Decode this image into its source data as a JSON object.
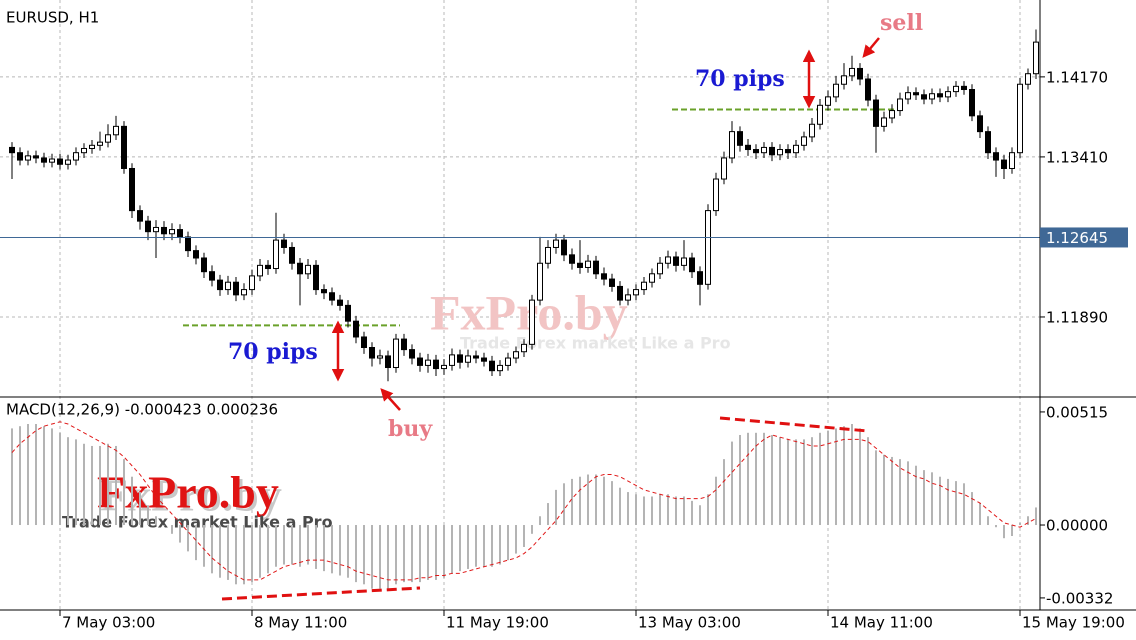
{
  "chart_data": [
    {
      "type": "candlestick",
      "title": "EURUSD, H1",
      "categories": [
        null,
        null,
        null,
        null,
        null,
        null,
        "7 May 03:00",
        null,
        null,
        null,
        null,
        null,
        null,
        null,
        null,
        null,
        null,
        null,
        null,
        null,
        null,
        null,
        null,
        null,
        null,
        null,
        null,
        null,
        null,
        null,
        "8 May 11:00",
        null,
        null,
        null,
        null,
        null,
        null,
        null,
        null,
        null,
        null,
        null,
        null,
        null,
        null,
        null,
        null,
        null,
        null,
        null,
        null,
        null,
        null,
        null,
        "11 May 19:00",
        null,
        null,
        null,
        null,
        null,
        null,
        null,
        null,
        null,
        null,
        null,
        null,
        null,
        null,
        null,
        null,
        null,
        null,
        null,
        null,
        null,
        null,
        null,
        "13 May 03:00",
        null,
        null,
        null,
        null,
        null,
        null,
        null,
        null,
        null,
        null,
        null,
        null,
        null,
        null,
        null,
        null,
        null,
        null,
        null,
        null,
        null,
        null,
        null,
        "14 May 11:00",
        null,
        null,
        null,
        null,
        null,
        null,
        null,
        null,
        null,
        null,
        null,
        null,
        null,
        null,
        null,
        null,
        null,
        null,
        null,
        null,
        null,
        null,
        null,
        "15 May 19:00",
        null,
        null
      ],
      "open": [
        1.135,
        1.1345,
        1.1338,
        1.1342,
        1.134,
        1.1336,
        1.1339,
        1.1334,
        1.1338,
        1.1345,
        1.1349,
        1.1352,
        1.1355,
        1.1362,
        1.137,
        1.133,
        1.129,
        1.128,
        1.127,
        1.1274,
        1.1268,
        1.1272,
        1.1265,
        1.1252,
        1.1245,
        1.1232,
        1.1224,
        1.1215,
        1.1222,
        1.121,
        1.1215,
        1.1228,
        1.1238,
        1.1235,
        1.1262,
        1.1255,
        1.124,
        1.123,
        1.1238,
        1.1215,
        1.1212,
        1.1205,
        1.12,
        1.1185,
        1.117,
        1.116,
        1.115,
        1.1152,
        1.1141,
        1.1168,
        1.1158,
        1.115,
        1.1143,
        1.1148,
        1.114,
        1.1143,
        1.1153,
        1.1146,
        1.1152,
        1.115,
        1.1147,
        1.1138,
        1.1143,
        1.115,
        1.1156,
        1.1163,
        1.1205,
        1.124,
        1.1255,
        1.1262,
        1.1248,
        1.124,
        1.1236,
        1.1242,
        1.123,
        1.1225,
        1.1218,
        1.1205,
        1.121,
        1.1215,
        1.1222,
        1.123,
        1.124,
        1.1246,
        1.1238,
        1.1245,
        1.1232,
        1.122,
        1.129,
        1.132,
        1.134,
        1.1365,
        1.1352,
        1.1348,
        1.1345,
        1.135,
        1.1343,
        1.1348,
        1.1345,
        1.1352,
        1.136,
        1.1372,
        1.139,
        1.1398,
        1.141,
        1.1418,
        1.1425,
        1.1415,
        1.1395,
        1.137,
        1.1378,
        1.1385,
        1.1396,
        1.1402,
        1.14,
        1.1396,
        1.1401,
        1.1398,
        1.1403,
        1.1408,
        1.1405,
        1.138,
        1.1365,
        1.1345,
        1.1338,
        1.133,
        1.1345,
        1.141,
        1.142
      ],
      "high": [
        1.1355,
        1.135,
        1.1347,
        1.1347,
        1.1345,
        1.1344,
        1.1344,
        1.1343,
        1.135,
        1.1354,
        1.1357,
        1.1365,
        1.1372,
        1.138,
        1.1375,
        1.1335,
        1.1295,
        1.1285,
        1.1281,
        1.128,
        1.1278,
        1.1277,
        1.127,
        1.1257,
        1.125,
        1.1238,
        1.1229,
        1.1228,
        1.1227,
        1.1221,
        1.1234,
        1.1244,
        1.1243,
        1.1288,
        1.1268,
        1.126,
        1.1245,
        1.1244,
        1.1243,
        1.122,
        1.1217,
        1.121,
        1.1205,
        1.119,
        1.1175,
        1.1165,
        1.1158,
        1.1157,
        1.1173,
        1.1173,
        1.1163,
        1.1155,
        1.1154,
        1.1153,
        1.1149,
        1.1159,
        1.1158,
        1.1158,
        1.1157,
        1.1155,
        1.1152,
        1.1148,
        1.1155,
        1.1161,
        1.1168,
        1.121,
        1.1265,
        1.1262,
        1.1268,
        1.1267,
        1.1254,
        1.1262,
        1.1248,
        1.1247,
        1.1236,
        1.123,
        1.1223,
        1.1216,
        1.122,
        1.1227,
        1.1235,
        1.1246,
        1.1252,
        1.1251,
        1.1262,
        1.125,
        1.1237,
        1.1296,
        1.1326,
        1.1346,
        1.1375,
        1.137,
        1.1358,
        1.1353,
        1.1355,
        1.1355,
        1.1353,
        1.1353,
        1.1357,
        1.1365,
        1.1378,
        1.1396,
        1.1404,
        1.1418,
        1.143,
        1.1437,
        1.143,
        1.142,
        1.14,
        1.1384,
        1.1391,
        1.1402,
        1.1408,
        1.1407,
        1.1405,
        1.1406,
        1.1406,
        1.1408,
        1.1413,
        1.1413,
        1.141,
        1.1385,
        1.137,
        1.135,
        1.1343,
        1.135,
        1.1416,
        1.1425,
        1.1462
      ],
      "low": [
        1.132,
        1.1333,
        1.1333,
        1.1335,
        1.1331,
        1.1331,
        1.1329,
        1.1329,
        1.1333,
        1.134,
        1.1344,
        1.1347,
        1.135,
        1.1357,
        1.1325,
        1.1283,
        1.1272,
        1.1262,
        1.1245,
        1.1262,
        1.1262,
        1.1259,
        1.1246,
        1.1239,
        1.1226,
        1.1218,
        1.1209,
        1.121,
        1.1204,
        1.1205,
        1.121,
        1.1223,
        1.1229,
        1.123,
        1.1249,
        1.1234,
        1.12,
        1.1225,
        1.121,
        1.1206,
        1.12,
        1.1195,
        1.1179,
        1.1164,
        1.1154,
        1.1142,
        1.1144,
        1.1128,
        1.1136,
        1.1152,
        1.1144,
        1.1137,
        1.1136,
        1.1133,
        1.1134,
        1.1138,
        1.114,
        1.1141,
        1.1145,
        1.1142,
        1.1133,
        1.1133,
        1.1138,
        1.1145,
        1.1151,
        1.1158,
        1.12,
        1.1235,
        1.1249,
        1.1242,
        1.1234,
        1.123,
        1.1231,
        1.1225,
        1.1219,
        1.1213,
        1.12,
        1.12,
        1.1205,
        1.121,
        1.1217,
        1.1225,
        1.1235,
        1.1232,
        1.1233,
        1.1226,
        1.12,
        1.1215,
        1.1285,
        1.1315,
        1.1335,
        1.1346,
        1.1342,
        1.1339,
        1.134,
        1.1337,
        1.1338,
        1.1339,
        1.134,
        1.1347,
        1.1355,
        1.1367,
        1.1385,
        1.1393,
        1.1405,
        1.1413,
        1.1409,
        1.1389,
        1.1345,
        1.1365,
        1.1373,
        1.138,
        1.1391,
        1.1395,
        1.1391,
        1.1391,
        1.1393,
        1.1393,
        1.1398,
        1.14,
        1.1375,
        1.1359,
        1.1339,
        1.1322,
        1.132,
        1.1325,
        1.134,
        1.1405,
        1.1415
      ],
      "close": [
        1.1345,
        1.1338,
        1.1342,
        1.134,
        1.1336,
        1.1339,
        1.1334,
        1.1338,
        1.1345,
        1.1349,
        1.1352,
        1.1355,
        1.1362,
        1.137,
        1.133,
        1.129,
        1.128,
        1.127,
        1.1274,
        1.1268,
        1.1272,
        1.1265,
        1.1252,
        1.1245,
        1.1232,
        1.1224,
        1.1215,
        1.1222,
        1.121,
        1.1215,
        1.1228,
        1.1238,
        1.1235,
        1.1262,
        1.1255,
        1.124,
        1.123,
        1.1238,
        1.1215,
        1.1212,
        1.1205,
        1.12,
        1.1185,
        1.117,
        1.116,
        1.115,
        1.1152,
        1.1141,
        1.1168,
        1.1158,
        1.115,
        1.1143,
        1.1148,
        1.114,
        1.1143,
        1.1153,
        1.1146,
        1.1152,
        1.115,
        1.1147,
        1.1138,
        1.1143,
        1.115,
        1.1156,
        1.1163,
        1.1205,
        1.124,
        1.1255,
        1.1262,
        1.1248,
        1.124,
        1.1236,
        1.1242,
        1.123,
        1.1225,
        1.1218,
        1.1205,
        1.121,
        1.1215,
        1.1222,
        1.123,
        1.124,
        1.1246,
        1.1238,
        1.1245,
        1.1232,
        1.122,
        1.129,
        1.132,
        1.134,
        1.1365,
        1.1352,
        1.1348,
        1.1345,
        1.135,
        1.1343,
        1.1348,
        1.1345,
        1.1352,
        1.136,
        1.1372,
        1.139,
        1.1398,
        1.141,
        1.1418,
        1.1425,
        1.1415,
        1.1395,
        1.137,
        1.1378,
        1.1385,
        1.1396,
        1.1402,
        1.14,
        1.1396,
        1.1401,
        1.1398,
        1.1403,
        1.1408,
        1.1405,
        1.138,
        1.1365,
        1.1345,
        1.1338,
        1.133,
        1.1345,
        1.141,
        1.142,
        1.145
      ],
      "up_color": "#ffffff",
      "down_color": "#000000",
      "ylim": [
        1.1113,
        1.149
      ],
      "yticks": [
        {
          "value": 1.1417,
          "label": "1.14170"
        },
        {
          "value": 1.1341,
          "label": "1.13410"
        },
        {
          "value": 1.1189,
          "label": "1.11890"
        }
      ],
      "current_price": 1.12645,
      "current_color": "#3f6896",
      "levels": [
        1.1181,
        1.1386
      ],
      "level_color": "#6aa12a",
      "grid": true,
      "annotations": {
        "pips": "70 pips",
        "sell": "sell",
        "buy": "buy"
      }
    },
    {
      "type": "macd",
      "title": "MACD(12,26,9) -0.000423 0.000236",
      "series": [
        {
          "color": "#b4b4b4",
          "style": "bars",
          "values": [
            0.0044,
            0.0045,
            0.0046,
            0.0046,
            0.0045,
            0.0044,
            0.0042,
            0.004,
            0.0039,
            0.0037,
            0.0036,
            0.0036,
            0.0037,
            0.0036,
            0.003,
            0.0022,
            0.0015,
            0.0009,
            0.0004,
            0.0,
            -0.0004,
            -0.0008,
            -0.0012,
            -0.0016,
            -0.0019,
            -0.0022,
            -0.0024,
            -0.0025,
            -0.0027,
            -0.0027,
            -0.0026,
            -0.0024,
            -0.0022,
            -0.0019,
            -0.0018,
            -0.0018,
            -0.0019,
            -0.0018,
            -0.002,
            -0.0021,
            -0.0022,
            -0.0023,
            -0.0024,
            -0.0026,
            -0.0027,
            -0.0029,
            -0.0029,
            -0.003,
            -0.0027,
            -0.0026,
            -0.0026,
            -0.0026,
            -0.0025,
            -0.0025,
            -0.0024,
            -0.0022,
            -0.0021,
            -0.002,
            -0.0019,
            -0.0019,
            -0.0019,
            -0.0018,
            -0.0016,
            -0.0013,
            -0.001,
            -0.0004,
            0.0004,
            0.001,
            0.0016,
            0.0019,
            0.0021,
            0.0022,
            0.0023,
            0.0023,
            0.0022,
            0.002,
            0.0017,
            0.0015,
            0.0014,
            0.0013,
            0.0013,
            0.0014,
            0.0014,
            0.0013,
            0.0013,
            0.0011,
            0.0009,
            0.0014,
            0.0022,
            0.003,
            0.0038,
            0.0041,
            0.0042,
            0.0042,
            0.0042,
            0.0041,
            0.004,
            0.0039,
            0.0039,
            0.0039,
            0.004,
            0.0042,
            0.0043,
            0.0044,
            0.0045,
            0.0046,
            0.0044,
            0.004,
            0.0034,
            0.0032,
            0.0031,
            0.003,
            0.0029,
            0.0027,
            0.0025,
            0.0024,
            0.0022,
            0.0021,
            0.002,
            0.0019,
            0.0015,
            0.001,
            0.0004,
            -0.0001,
            -0.0006,
            -0.0005,
            0.0001,
            0.0004,
            0.0008
          ]
        },
        {
          "color": "#e01818",
          "style": "dashed-line",
          "values": [
            0.0033,
            0.0037,
            0.004,
            0.0043,
            0.0045,
            0.0046,
            0.0047,
            0.0046,
            0.0044,
            0.0042,
            0.004,
            0.0038,
            0.0036,
            0.0034,
            0.0031,
            0.0027,
            0.0023,
            0.0018,
            0.0013,
            0.0009,
            0.0005,
            0.0001,
            -0.0003,
            -0.0007,
            -0.0011,
            -0.0015,
            -0.0018,
            -0.0021,
            -0.0023,
            -0.0025,
            -0.0025,
            -0.0025,
            -0.0023,
            -0.0021,
            -0.0019,
            -0.0018,
            -0.0017,
            -0.0016,
            -0.0016,
            -0.0016,
            -0.0017,
            -0.0018,
            -0.0019,
            -0.0021,
            -0.0022,
            -0.0023,
            -0.0024,
            -0.0025,
            -0.0025,
            -0.0025,
            -0.0025,
            -0.0024,
            -0.0024,
            -0.0023,
            -0.0023,
            -0.0022,
            -0.0022,
            -0.0021,
            -0.002,
            -0.0019,
            -0.0018,
            -0.0017,
            -0.0016,
            -0.0015,
            -0.0013,
            -0.001,
            -0.0006,
            -0.0002,
            0.0002,
            0.0007,
            0.0012,
            0.0016,
            0.0019,
            0.0022,
            0.0023,
            0.0023,
            0.0022,
            0.002,
            0.0018,
            0.0016,
            0.0015,
            0.0014,
            0.0013,
            0.0012,
            0.0012,
            0.0012,
            0.0012,
            0.0013,
            0.0016,
            0.002,
            0.0024,
            0.0028,
            0.0032,
            0.0036,
            0.0039,
            0.0041,
            0.004,
            0.0039,
            0.0038,
            0.0037,
            0.0036,
            0.0036,
            0.0037,
            0.0038,
            0.0039,
            0.0039,
            0.0039,
            0.0038,
            0.0035,
            0.0032,
            0.0029,
            0.0026,
            0.0024,
            0.0022,
            0.0021,
            0.0019,
            0.0018,
            0.0016,
            0.0015,
            0.0014,
            0.0012,
            0.001,
            0.0007,
            0.0004,
            0.0001,
            0.0,
            -0.0001,
            0.0001,
            0.0003
          ]
        }
      ],
      "ylim": [
        -0.00387,
        0.00583
      ],
      "yticks": [
        0.00515,
        {
          "value": 0,
          "label": "0.00000"
        },
        -0.00332
      ],
      "watermark": {
        "brand": "FxPro.by",
        "slogan": "Trade Forex market Like a Pro"
      }
    }
  ]
}
